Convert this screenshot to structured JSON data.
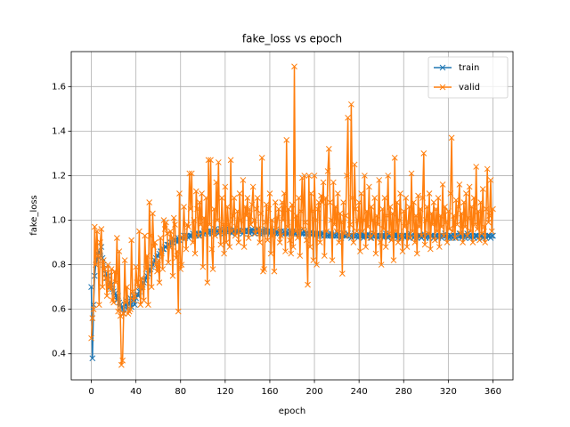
{
  "chart_data": {
    "type": "line",
    "title": "fake_loss vs epoch",
    "x_label": "epoch",
    "y_label": "fake_loss",
    "xlim": [
      -18,
      378
    ],
    "ylim": [
      0.283,
      1.757
    ],
    "xticks": [
      0,
      40,
      80,
      120,
      160,
      200,
      240,
      280,
      320,
      360
    ],
    "yticks": [
      0.4,
      0.6,
      0.8,
      {
        "value": 1,
        "label": "1.0"
      },
      1.2,
      1.4,
      1.6
    ],
    "grid": true,
    "legend": "upper right",
    "marker": "x",
    "x": [
      0,
      1,
      2,
      3,
      4,
      5,
      6,
      7,
      8,
      9,
      10,
      11,
      12,
      13,
      14,
      15,
      16,
      17,
      18,
      19,
      20,
      21,
      22,
      23,
      24,
      25,
      26,
      27,
      28,
      29,
      30,
      31,
      32,
      33,
      34,
      35,
      36,
      37,
      38,
      39,
      40,
      41,
      42,
      43,
      44,
      45,
      46,
      47,
      48,
      49,
      50,
      51,
      52,
      53,
      54,
      55,
      56,
      57,
      58,
      59,
      60,
      61,
      62,
      63,
      64,
      65,
      66,
      67,
      68,
      69,
      70,
      71,
      72,
      73,
      74,
      75,
      76,
      77,
      78,
      79,
      80,
      81,
      82,
      83,
      84,
      85,
      86,
      87,
      88,
      89,
      90,
      91,
      92,
      93,
      94,
      95,
      96,
      97,
      98,
      99,
      100,
      101,
      102,
      103,
      104,
      105,
      106,
      107,
      108,
      109,
      110,
      111,
      112,
      113,
      114,
      115,
      116,
      117,
      118,
      119,
      120,
      121,
      122,
      123,
      124,
      125,
      126,
      127,
      128,
      129,
      130,
      131,
      132,
      133,
      134,
      135,
      136,
      137,
      138,
      139,
      140,
      141,
      142,
      143,
      144,
      145,
      146,
      147,
      148,
      149,
      150,
      151,
      152,
      153,
      154,
      155,
      156,
      157,
      158,
      159,
      160,
      161,
      162,
      163,
      164,
      165,
      166,
      167,
      168,
      169,
      170,
      171,
      172,
      173,
      174,
      175,
      176,
      177,
      178,
      179,
      180,
      181,
      182,
      183,
      184,
      185,
      186,
      187,
      188,
      189,
      190,
      191,
      192,
      193,
      194,
      195,
      196,
      197,
      198,
      199,
      200,
      201,
      202,
      203,
      204,
      205,
      206,
      207,
      208,
      209,
      210,
      211,
      212,
      213,
      214,
      215,
      216,
      217,
      218,
      219,
      220,
      221,
      222,
      223,
      224,
      225,
      226,
      227,
      228,
      229,
      230,
      231,
      232,
      233,
      234,
      235,
      236,
      237,
      238,
      239,
      240,
      241,
      242,
      243,
      244,
      245,
      246,
      247,
      248,
      249,
      250,
      251,
      252,
      253,
      254,
      255,
      256,
      257,
      258,
      259,
      260,
      261,
      262,
      263,
      264,
      265,
      266,
      267,
      268,
      269,
      270,
      271,
      272,
      273,
      274,
      275,
      276,
      277,
      278,
      279,
      280,
      281,
      282,
      283,
      284,
      285,
      286,
      287,
      288,
      289,
      290,
      291,
      292,
      293,
      294,
      295,
      296,
      297,
      298,
      299,
      300,
      301,
      302,
      303,
      304,
      305,
      306,
      307,
      308,
      309,
      310,
      311,
      312,
      313,
      314,
      315,
      316,
      317,
      318,
      319,
      320,
      321,
      322,
      323,
      324,
      325,
      326,
      327,
      328,
      329,
      330,
      331,
      332,
      333,
      334,
      335,
      336,
      337,
      338,
      339,
      340,
      341,
      342,
      343,
      344,
      345,
      346,
      347,
      348,
      349,
      350,
      351,
      352,
      353,
      354,
      355,
      356,
      357,
      358,
      359,
      360
    ],
    "series": [
      {
        "name": "train",
        "color": "#1f77b4",
        "values": [
          0.7,
          0.38,
          0.62,
          0.75,
          0.8,
          0.82,
          0.85,
          0.86,
          0.84,
          0.88,
          0.83,
          0.8,
          0.78,
          0.76,
          0.74,
          0.75,
          0.72,
          0.7,
          0.71,
          0.69,
          0.68,
          0.67,
          0.66,
          0.64,
          0.66,
          0.63,
          0.62,
          0.61,
          0.6,
          0.58,
          0.62,
          0.64,
          0.6,
          0.63,
          0.62,
          0.65,
          0.61,
          0.64,
          0.66,
          0.62,
          0.65,
          0.67,
          0.66,
          0.68,
          0.7,
          0.69,
          0.71,
          0.72,
          0.73,
          0.74,
          0.75,
          0.76,
          0.77,
          0.78,
          0.79,
          0.8,
          0.81,
          0.82,
          0.83,
          0.84,
          0.84,
          0.85,
          0.86,
          0.86,
          0.87,
          0.87,
          0.88,
          0.88,
          0.89,
          0.89,
          0.89,
          0.9,
          0.9,
          0.9,
          0.91,
          0.91,
          0.91,
          0.9,
          0.92,
          0.91,
          0.92,
          0.92,
          0.92,
          0.93,
          0.92,
          0.93,
          0.93,
          0.92,
          0.93,
          0.93,
          0.93,
          0.94,
          0.93,
          0.94,
          0.93,
          0.94,
          0.94,
          0.93,
          0.94,
          0.94,
          0.94,
          0.95,
          0.94,
          0.95,
          0.95,
          0.94,
          0.95,
          0.95,
          0.94,
          0.95,
          0.95,
          0.96,
          0.95,
          0.95,
          0.94,
          0.95,
          0.96,
          0.95,
          0.95,
          0.94,
          0.95,
          0.96,
          0.95,
          0.95,
          0.96,
          0.95,
          0.94,
          0.95,
          0.96,
          0.95,
          0.95,
          0.94,
          0.95,
          0.96,
          0.95,
          0.95,
          0.94,
          0.95,
          0.95,
          0.96,
          0.95,
          0.95,
          0.94,
          0.95,
          0.96,
          0.95,
          0.94,
          0.95,
          0.95,
          0.96,
          0.95,
          0.94,
          0.95,
          0.95,
          0.94,
          0.95,
          0.96,
          0.94,
          0.95,
          0.95,
          0.94,
          0.95,
          0.95,
          0.94,
          0.95,
          0.94,
          0.95,
          0.94,
          0.95,
          0.94,
          0.95,
          0.94,
          0.94,
          0.95,
          0.94,
          0.95,
          0.94,
          0.94,
          0.95,
          0.94,
          0.94,
          0.95,
          0.94,
          0.94,
          0.95,
          0.94,
          0.94,
          0.95,
          0.94,
          0.94,
          0.94,
          0.95,
          0.94,
          0.94,
          0.93,
          0.94,
          0.94,
          0.95,
          0.94,
          0.94,
          0.94,
          0.93,
          0.94,
          0.94,
          0.93,
          0.94,
          0.93,
          0.94,
          0.94,
          0.93,
          0.94,
          0.93,
          0.93,
          0.94,
          0.93,
          0.94,
          0.93,
          0.93,
          0.94,
          0.93,
          0.93,
          0.94,
          0.93,
          0.93,
          0.92,
          0.93,
          0.94,
          0.93,
          0.93,
          0.93,
          0.94,
          0.93,
          0.93,
          0.92,
          0.93,
          0.93,
          0.94,
          0.93,
          0.93,
          0.92,
          0.93,
          0.93,
          0.94,
          0.93,
          0.92,
          0.93,
          0.93,
          0.93,
          0.94,
          0.93,
          0.93,
          0.92,
          0.93,
          0.93,
          0.94,
          0.93,
          0.93,
          0.92,
          0.93,
          0.93,
          0.93,
          0.93,
          0.92,
          0.93,
          0.94,
          0.93,
          0.92,
          0.93,
          0.93,
          0.93,
          0.92,
          0.93,
          0.93,
          0.94,
          0.93,
          0.92,
          0.93,
          0.93,
          0.92,
          0.93,
          0.93,
          0.92,
          0.93,
          0.93,
          0.93,
          0.92,
          0.94,
          0.93,
          0.93,
          0.92,
          0.93,
          0.93,
          0.92,
          0.93,
          0.93,
          0.93,
          0.92,
          0.93,
          0.94,
          0.93,
          0.92,
          0.93,
          0.93,
          0.92,
          0.93,
          0.93,
          0.93,
          0.92,
          0.93,
          0.93,
          0.93,
          0.92,
          0.93,
          0.93,
          0.92,
          0.93,
          0.93,
          0.94,
          0.93,
          0.92,
          0.93,
          0.92,
          0.93,
          0.93,
          0.92,
          0.93,
          0.93,
          0.92,
          0.93,
          0.93,
          0.94,
          0.93,
          0.92,
          0.93,
          0.93,
          0.92,
          0.93,
          0.94,
          0.93,
          0.93,
          0.92,
          0.93,
          0.93,
          0.92,
          0.93,
          0.93,
          0.93,
          0.92,
          0.93,
          0.93,
          0.93,
          0.92,
          0.93,
          0.93,
          0.92,
          0.93,
          0.93,
          0.93,
          0.92,
          0.93,
          0.93
        ]
      },
      {
        "name": "valid",
        "color": "#ff7f0e",
        "values": [
          0.47,
          0.56,
          0.6,
          0.97,
          0.8,
          0.95,
          0.84,
          0.62,
          0.9,
          0.96,
          0.7,
          0.82,
          0.78,
          0.74,
          0.66,
          0.8,
          0.7,
          0.69,
          0.78,
          0.64,
          0.63,
          0.77,
          0.72,
          0.92,
          0.59,
          0.86,
          0.57,
          0.35,
          0.37,
          0.58,
          0.82,
          0.63,
          0.7,
          0.58,
          0.59,
          0.6,
          0.91,
          0.68,
          0.64,
          0.66,
          0.79,
          0.72,
          0.7,
          0.95,
          0.62,
          0.74,
          0.7,
          0.64,
          0.93,
          0.78,
          0.84,
          0.62,
          1.08,
          0.93,
          0.7,
          1.03,
          0.88,
          0.9,
          0.8,
          0.77,
          0.82,
          0.72,
          0.92,
          0.85,
          0.78,
          1.0,
          0.96,
          0.99,
          0.94,
          0.81,
          0.88,
          0.95,
          0.92,
          0.75,
          1.01,
          0.98,
          0.83,
          0.86,
          0.59,
          1.12,
          0.78,
          0.8,
          0.92,
          1.06,
          0.93,
          0.87,
          0.98,
          0.97,
          1.21,
          1.05,
          1.21,
          0.9,
          1.0,
          0.85,
          1.13,
          1.05,
          0.93,
          1.08,
          0.98,
          1.12,
          0.79,
          1.01,
          0.95,
          1.1,
          0.72,
          1.27,
          0.98,
          1.27,
          0.87,
          0.78,
          1.05,
          0.93,
          1.17,
          1.0,
          1.26,
          0.95,
          0.89,
          1.1,
          0.98,
          0.85,
          1.15,
          0.9,
          1.06,
          0.98,
          0.88,
          1.27,
          0.95,
          1.02,
          1.1,
          0.93,
          0.97,
          1.04,
          0.9,
          1.12,
          1.0,
          0.95,
          1.18,
          0.88,
          1.06,
          1.02,
          1.1,
          0.92,
          1.05,
          0.98,
          1.07,
          1.15,
          1.0,
          0.94,
          1.05,
          1.1,
          0.96,
          0.9,
          1.03,
          1.28,
          0.77,
          0.78,
          0.99,
          1.07,
          0.91,
          1.05,
          1.12,
          0.85,
          1.0,
          0.93,
          0.77,
          1.08,
          0.96,
          1.01,
          1.05,
          0.9,
          0.93,
          1.08,
          1.0,
          1.12,
          0.86,
          1.36,
          0.97,
          1.05,
          0.91,
          0.85,
          1.07,
          0.88,
          1.69,
          0.95,
          1.02,
          0.92,
          1.1,
          0.84,
          1.04,
          1.19,
          0.96,
          1.2,
          0.99,
          0.91,
          0.71,
          1.2,
          0.88,
          1.12,
          1.04,
          0.82,
          1.2,
          1.0,
          0.8,
          1.05,
          1.08,
          0.9,
          1.11,
          1.08,
          1.17,
          0.84,
          1.1,
          0.95,
          1.22,
          1.32,
          1.08,
          1.0,
          0.82,
          1.17,
          0.98,
          1.06,
          0.95,
          1.12,
          0.9,
          1.03,
          0.99,
          0.76,
          1.08,
          0.94,
          1.02,
          1.2,
          1.46,
          0.93,
          0.98,
          1.52,
          1.1,
          0.9,
          1.25,
          1.05,
          0.95,
          1.0,
          1.08,
          0.86,
          1.12,
          0.95,
          1.0,
          1.2,
          0.88,
          1.04,
          0.97,
          1.15,
          0.92,
          1.06,
          1.0,
          0.94,
          1.1,
          0.85,
          1.02,
          0.98,
          1.18,
          0.9,
          0.8,
          1.05,
          0.96,
          1.1,
          0.88,
          1.02,
          1.2,
          0.94,
          1.06,
          0.91,
          1.03,
          0.82,
          1.28,
          0.95,
          1.08,
          0.9,
          1.0,
          1.12,
          0.93,
          0.86,
          1.04,
          0.97,
          1.1,
          0.88,
          0.99,
          1.06,
          0.92,
          1.21,
          0.95,
          1.08,
          0.9,
          1.02,
          0.85,
          1.11,
          0.97,
          1.05,
          0.93,
          1.1,
          1.3,
          0.89,
          1.0,
          1.06,
          0.94,
          1.12,
          0.87,
          1.03,
          0.98,
          1.08,
          0.91,
          1.05,
          0.95,
          1.1,
          0.88,
          1.02,
          0.97,
          1.16,
          0.93,
          1.06,
          0.99,
          0.9,
          1.04,
          0.96,
          1.12,
          1.37,
          0.95,
          1.02,
          0.92,
          1.09,
          0.98,
          1.06,
          1.16,
          0.94,
          1.03,
          0.9,
          1.08,
          0.97,
          1.12,
          0.93,
          1.01,
          1.15,
          0.95,
          1.06,
          0.9,
          1.1,
          0.98,
          1.24,
          0.96,
          1.04,
          0.91,
          1.08,
          0.94,
          1.14,
          0.97,
          0.9,
          1.05,
          1.23,
          0.99,
          1.02,
          1.18,
          0.95,
          1.05
        ]
      }
    ]
  }
}
